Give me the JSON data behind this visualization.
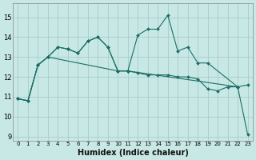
{
  "bg_color": "#c8e8e5",
  "line_color": "#1a6e65",
  "grid_color": "#a8cccb",
  "xlabel": "Humidex (Indice chaleur)",
  "xlim": [
    -0.5,
    23.5
  ],
  "ylim": [
    8.8,
    15.7
  ],
  "yticks": [
    9,
    10,
    11,
    12,
    13,
    14,
    15
  ],
  "xticks": [
    0,
    1,
    2,
    3,
    4,
    5,
    6,
    7,
    8,
    9,
    10,
    11,
    12,
    13,
    14,
    15,
    16,
    17,
    18,
    19,
    20,
    21,
    22,
    23
  ],
  "series": [
    {
      "x": [
        0,
        1,
        2,
        3,
        4,
        5,
        6,
        7,
        8,
        9,
        10,
        11,
        12,
        13,
        14,
        15,
        16,
        17,
        18,
        19,
        20,
        21,
        22
      ],
      "y": [
        10.9,
        10.8,
        12.6,
        13.0,
        13.5,
        13.4,
        13.2,
        13.8,
        14.0,
        13.5,
        12.3,
        12.3,
        12.2,
        12.1,
        12.1,
        12.1,
        12.0,
        12.0,
        11.9,
        11.4,
        11.3,
        11.5,
        11.5
      ]
    },
    {
      "x": [
        0,
        1,
        2,
        3,
        4,
        5,
        6,
        7,
        8,
        9,
        10,
        11,
        12,
        13,
        14,
        15,
        16,
        17,
        18,
        19,
        22,
        23
      ],
      "y": [
        10.9,
        10.8,
        12.6,
        13.0,
        13.5,
        13.4,
        13.2,
        13.8,
        14.0,
        13.5,
        12.3,
        12.3,
        14.1,
        14.4,
        14.4,
        15.1,
        13.3,
        13.5,
        12.7,
        12.7,
        11.5,
        11.6
      ]
    },
    {
      "x": [
        0,
        1,
        2,
        3,
        10,
        11,
        22,
        23
      ],
      "y": [
        10.9,
        10.8,
        12.6,
        13.0,
        12.3,
        12.3,
        11.5,
        9.1
      ]
    }
  ]
}
